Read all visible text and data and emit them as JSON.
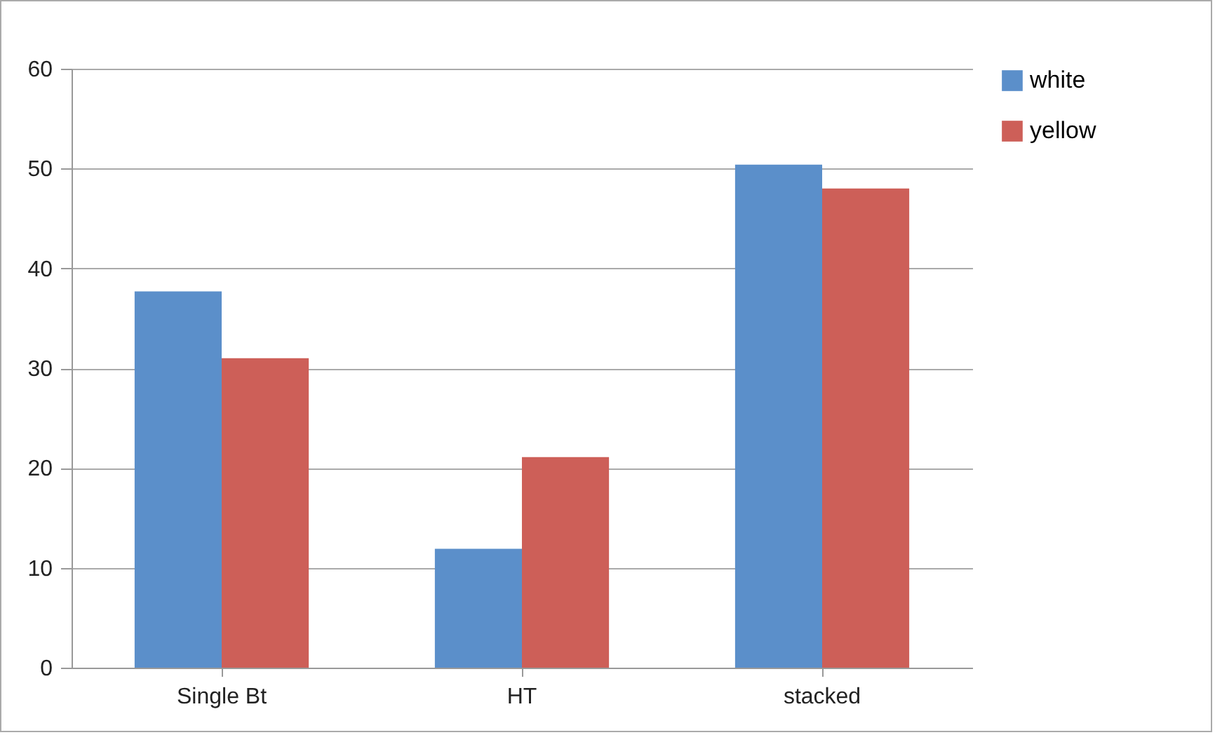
{
  "chart_data": {
    "type": "bar",
    "categories": [
      "Single Bt",
      "HT",
      "stacked"
    ],
    "series": [
      {
        "name": "white",
        "color": "#5b8fca",
        "values": [
          37.7,
          11.9,
          50.4
        ]
      },
      {
        "name": "yellow",
        "color": "#cd5f58",
        "values": [
          31.0,
          21.1,
          48.0
        ]
      }
    ],
    "ylim": [
      0,
      60
    ],
    "yticks": [
      0,
      10,
      20,
      30,
      40,
      50,
      60
    ],
    "grid": "y",
    "legend": "right"
  }
}
